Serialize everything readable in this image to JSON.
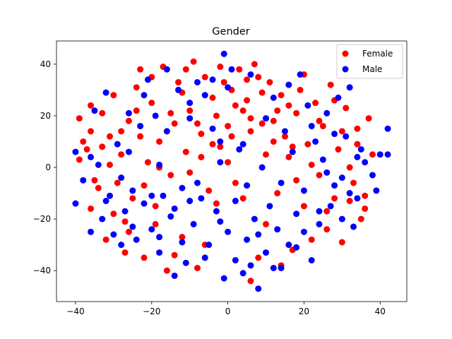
{
  "chart_data": {
    "type": "scatter",
    "title": "Gender",
    "xlabel": "",
    "ylabel": "",
    "xlim": [
      -45,
      47
    ],
    "ylim": [
      -52,
      49
    ],
    "xticks": [
      -40,
      -20,
      0,
      20,
      40
    ],
    "yticks": [
      -40,
      -20,
      0,
      20,
      40
    ],
    "xtick_labels": [
      "−40",
      "−20",
      "0",
      "20",
      "40"
    ],
    "ytick_labels": [
      "−40",
      "−20",
      "0",
      "20",
      "40"
    ],
    "grid": false,
    "legend_position": "top-right",
    "series": [
      {
        "name": "Female",
        "color": "#ff0000",
        "points": [
          [
            -39,
            19
          ],
          [
            -39,
            3
          ],
          [
            -36,
            24
          ],
          [
            -36,
            14
          ],
          [
            -37,
            7
          ],
          [
            -36,
            -16
          ],
          [
            -34,
            -8
          ],
          [
            -33,
            21
          ],
          [
            -32,
            -28
          ],
          [
            -31,
            12
          ],
          [
            -30,
            28
          ],
          [
            -29,
            -6
          ],
          [
            -28,
            5
          ],
          [
            -27,
            -33
          ],
          [
            -26,
            18
          ],
          [
            -25,
            -12
          ],
          [
            -24,
            31
          ],
          [
            -23,
            38
          ],
          [
            -22,
            -35
          ],
          [
            -21,
            2
          ],
          [
            -20,
            25
          ],
          [
            -19,
            -22
          ],
          [
            -18,
            10
          ],
          [
            -17,
            39
          ],
          [
            -16,
            -40
          ],
          [
            -15,
            -3
          ],
          [
            -14,
            17
          ],
          [
            -13,
            33
          ],
          [
            -12,
            -27
          ],
          [
            -11,
            6
          ],
          [
            -10,
            22
          ],
          [
            -9,
            41
          ],
          [
            -8,
            -39
          ],
          [
            -7,
            13
          ],
          [
            -6,
            35
          ],
          [
            -5,
            -9
          ],
          [
            -4,
            27
          ],
          [
            -3,
            20
          ],
          [
            -2,
            8
          ],
          [
            -1,
            33
          ],
          [
            0,
            16
          ],
          [
            1,
            30
          ],
          [
            2,
            -6
          ],
          [
            3,
            38
          ],
          [
            4,
            22
          ],
          [
            5,
            26
          ],
          [
            6,
            -44
          ],
          [
            6,
            14
          ],
          [
            7,
            40
          ],
          [
            8,
            -35
          ],
          [
            9,
            29
          ],
          [
            10,
            5
          ],
          [
            11,
            33
          ],
          [
            12,
            18
          ],
          [
            13,
            -10
          ],
          [
            14,
            28
          ],
          [
            15,
            12
          ],
          [
            16,
            4
          ],
          [
            17,
            -32
          ],
          [
            18,
            21
          ],
          [
            19,
            30
          ],
          [
            20,
            -15
          ],
          [
            21,
            9
          ],
          [
            22,
            -28
          ],
          [
            23,
            25
          ],
          [
            24,
            -3
          ],
          [
            25,
            16
          ],
          [
            26,
            -24
          ],
          [
            27,
            32
          ],
          [
            28,
            -12
          ],
          [
            29,
            7
          ],
          [
            30,
            -29
          ],
          [
            31,
            23
          ],
          [
            32,
            0
          ],
          [
            33,
            -6
          ],
          [
            34,
            15
          ],
          [
            35,
            -20
          ],
          [
            36,
            -11
          ],
          [
            37,
            19
          ],
          [
            38,
            5
          ],
          [
            -35,
            -5
          ],
          [
            -33,
            8
          ],
          [
            -30,
            -18
          ],
          [
            -28,
            14
          ],
          [
            -26,
            -25
          ],
          [
            -24,
            22
          ],
          [
            -22,
            -7
          ],
          [
            -20,
            35
          ],
          [
            -18,
            0
          ],
          [
            -16,
            14
          ],
          [
            -14,
            -34
          ],
          [
            -12,
            29
          ],
          [
            -10,
            -2
          ],
          [
            -8,
            17
          ],
          [
            -6,
            -30
          ],
          [
            -4,
            9
          ],
          [
            -2,
            39
          ],
          [
            0,
            2
          ],
          [
            2,
            24
          ],
          [
            4,
            -12
          ],
          [
            6,
            19
          ],
          [
            8,
            35
          ],
          [
            10,
            -22
          ],
          [
            12,
            10
          ],
          [
            14,
            -38
          ],
          [
            16,
            24
          ],
          [
            18,
            -5
          ],
          [
            20,
            36
          ],
          [
            22,
            1
          ],
          [
            24,
            18
          ],
          [
            26,
            -17
          ],
          [
            28,
            26
          ],
          [
            30,
            14
          ],
          [
            32,
            -13
          ],
          [
            34,
            9
          ],
          [
            36,
            -16
          ],
          [
            -38,
            10
          ],
          [
            -31,
            1
          ],
          [
            -27,
            -21
          ],
          [
            -23,
            12
          ],
          [
            -19,
            -15
          ],
          [
            -15,
            21
          ],
          [
            -11,
            38
          ],
          [
            -7,
            4
          ],
          [
            -3,
            -14
          ],
          [
            1,
            12
          ],
          [
            5,
            34
          ],
          [
            9,
            17
          ],
          [
            13,
            22
          ],
          [
            17,
            8
          ]
        ]
      },
      {
        "name": "Male",
        "color": "#0000ff",
        "points": [
          [
            -40,
            -14
          ],
          [
            -40,
            6
          ],
          [
            -38,
            -5
          ],
          [
            -36,
            -25
          ],
          [
            -35,
            22
          ],
          [
            -34,
            1
          ],
          [
            -33,
            -20
          ],
          [
            -32,
            29
          ],
          [
            -31,
            -11
          ],
          [
            -30,
            -26
          ],
          [
            -29,
            9
          ],
          [
            -28,
            -30
          ],
          [
            -27,
            -17
          ],
          [
            -26,
            21
          ],
          [
            -25,
            -9
          ],
          [
            -24,
            -28
          ],
          [
            -23,
            16
          ],
          [
            -22,
            -14
          ],
          [
            -21,
            34
          ],
          [
            -20,
            -24
          ],
          [
            -19,
            20
          ],
          [
            -18,
            -33
          ],
          [
            -17,
            -11
          ],
          [
            -16,
            38
          ],
          [
            -15,
            -19
          ],
          [
            -14,
            -42
          ],
          [
            -13,
            30
          ],
          [
            -12,
            -8
          ],
          [
            -11,
            -37
          ],
          [
            -10,
            19
          ],
          [
            -9,
            -22
          ],
          [
            -8,
            33
          ],
          [
            -7,
            -12
          ],
          [
            -6,
            28
          ],
          [
            -5,
            -30
          ],
          [
            -4,
            34
          ],
          [
            -3,
            -17
          ],
          [
            -2,
            10
          ],
          [
            -1,
            44
          ],
          [
            -1,
            -43
          ],
          [
            0,
            -25
          ],
          [
            1,
            38
          ],
          [
            2,
            -36
          ],
          [
            3,
            7
          ],
          [
            4,
            -41
          ],
          [
            5,
            -28
          ],
          [
            6,
            36
          ],
          [
            7,
            -20
          ],
          [
            8,
            -47
          ],
          [
            9,
            0
          ],
          [
            10,
            -33
          ],
          [
            11,
            -15
          ],
          [
            12,
            27
          ],
          [
            13,
            -24
          ],
          [
            14,
            -39
          ],
          [
            15,
            14
          ],
          [
            16,
            -30
          ],
          [
            17,
            6
          ],
          [
            18,
            -18
          ],
          [
            19,
            36
          ],
          [
            20,
            -9
          ],
          [
            21,
            24
          ],
          [
            22,
            -36
          ],
          [
            23,
            10
          ],
          [
            24,
            -22
          ],
          [
            25,
            3
          ],
          [
            26,
            21
          ],
          [
            27,
            -15
          ],
          [
            28,
            -7
          ],
          [
            29,
            27
          ],
          [
            30,
            -4
          ],
          [
            31,
            12
          ],
          [
            32,
            31
          ],
          [
            33,
            -23
          ],
          [
            34,
            -12
          ],
          [
            35,
            7
          ],
          [
            36,
            2
          ],
          [
            38,
            -3
          ],
          [
            39,
            -9
          ],
          [
            40,
            5
          ],
          [
            42,
            15
          ],
          [
            42,
            5
          ],
          [
            -36,
            4
          ],
          [
            -32,
            -13
          ],
          [
            -28,
            -4
          ],
          [
            -25,
            -23
          ],
          [
            -22,
            28
          ],
          [
            -20,
            -11
          ],
          [
            -18,
            -27
          ],
          [
            -16,
            14
          ],
          [
            -14,
            -16
          ],
          [
            -12,
            -29
          ],
          [
            -10,
            25
          ],
          [
            -8,
            -6
          ],
          [
            -6,
            -35
          ],
          [
            -4,
            15
          ],
          [
            -2,
            -21
          ],
          [
            0,
            31
          ],
          [
            2,
            -13
          ],
          [
            4,
            9
          ],
          [
            6,
            -38
          ],
          [
            8,
            -26
          ],
          [
            10,
            19
          ],
          [
            12,
            -39
          ],
          [
            14,
            -6
          ],
          [
            16,
            32
          ],
          [
            18,
            -31
          ],
          [
            20,
            -25
          ],
          [
            22,
            16
          ],
          [
            24,
            -17
          ],
          [
            26,
            -2
          ],
          [
            28,
            13
          ],
          [
            30,
            -20
          ],
          [
            32,
            -10
          ],
          [
            34,
            4
          ],
          [
            -26,
            6
          ],
          [
            -18,
            1
          ],
          [
            -10,
            -13
          ],
          [
            -2,
            2
          ],
          [
            5,
            -7
          ]
        ]
      }
    ]
  }
}
